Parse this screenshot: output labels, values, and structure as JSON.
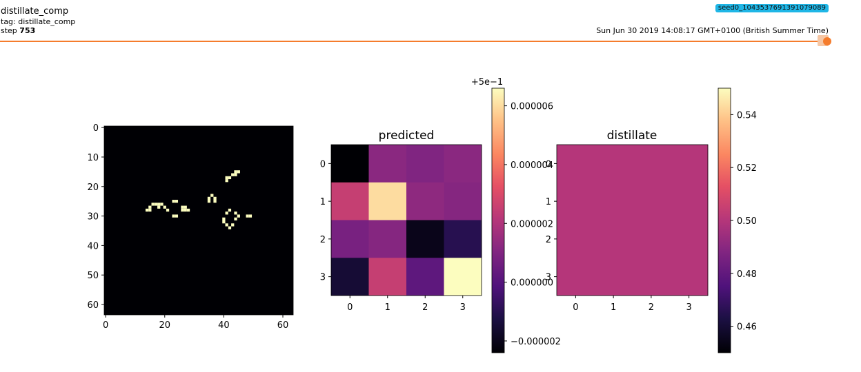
{
  "header": {
    "title": "distillate_comp",
    "tag": "tag: distillate_comp",
    "step_label": "step",
    "step_value": "753",
    "run_name": "seed0_1043537691391079089",
    "timestamp": "Sun Jun 30 2019 14:08:17 GMT+0100 (British Summer Time)"
  },
  "colors": {
    "accent": "#f57c2c",
    "badge": "#1fb6e6",
    "image_bg": "#000004",
    "image_fg": "#fcfdbf"
  },
  "chart_data": [
    {
      "type": "heatmap",
      "title": "",
      "colormap": "magma",
      "x_ticks": [
        "0",
        "20",
        "40",
        "60"
      ],
      "y_ticks": [
        "0",
        "10",
        "20",
        "30",
        "40",
        "50",
        "60"
      ],
      "grid_size": 64,
      "on_pixels": [
        [
          14,
          28
        ],
        [
          15,
          27
        ],
        [
          15,
          28
        ],
        [
          16,
          26
        ],
        [
          17,
          26
        ],
        [
          18,
          26
        ],
        [
          18,
          27
        ],
        [
          19,
          26
        ],
        [
          20,
          27
        ],
        [
          21,
          28
        ],
        [
          23,
          25
        ],
        [
          24,
          25
        ],
        [
          23,
          30
        ],
        [
          24,
          30
        ],
        [
          26,
          27
        ],
        [
          26,
          28
        ],
        [
          27,
          27
        ],
        [
          27,
          28
        ],
        [
          28,
          28
        ],
        [
          35,
          24
        ],
        [
          35,
          25
        ],
        [
          36,
          23
        ],
        [
          37,
          24
        ],
        [
          37,
          25
        ],
        [
          40,
          31
        ],
        [
          40,
          32
        ],
        [
          41,
          29
        ],
        [
          41,
          33
        ],
        [
          42,
          28
        ],
        [
          42,
          34
        ],
        [
          43,
          33
        ],
        [
          44,
          29
        ],
        [
          44,
          31
        ],
        [
          45,
          30
        ],
        [
          48,
          30
        ],
        [
          49,
          30
        ],
        [
          41,
          17
        ],
        [
          41,
          18
        ],
        [
          42,
          17
        ],
        [
          43,
          16
        ],
        [
          44,
          16
        ],
        [
          44,
          15
        ],
        [
          45,
          15
        ]
      ]
    },
    {
      "type": "heatmap",
      "title": "predicted",
      "colormap": "magma",
      "x_ticks": [
        "0",
        "1",
        "2",
        "3"
      ],
      "y_ticks": [
        "0",
        "1",
        "2",
        "3"
      ],
      "values": [
        [
          -2.4e-06,
          1.2e-06,
          1e-06,
          1.2e-06
        ],
        [
          2.5e-06,
          6e-06,
          1.3e-06,
          1.1e-06
        ],
        [
          8e-07,
          1.1e-06,
          -2e-06,
          -1e-06
        ],
        [
          -1.5e-06,
          2.5e-06,
          2e-07,
          6.6e-06
        ]
      ],
      "colorbar": {
        "offset_label": "+5e−1",
        "range": [
          -2.4e-06,
          6.6e-06
        ],
        "ticks": [
          -2e-06,
          0.0,
          2e-06,
          4e-06,
          6e-06
        ],
        "tick_labels": [
          "−0.000002",
          "0.000000",
          "0.000002",
          "0.000004",
          "0.000006"
        ]
      }
    },
    {
      "type": "heatmap",
      "title": "distillate",
      "colormap": "magma",
      "x_ticks": [
        "0",
        "1",
        "2",
        "3"
      ],
      "y_ticks": [
        "0",
        "1",
        "2",
        "3"
      ],
      "values": [
        [
          0.5,
          0.5,
          0.5,
          0.5
        ],
        [
          0.5,
          0.5,
          0.5,
          0.5
        ],
        [
          0.5,
          0.5,
          0.5,
          0.5
        ],
        [
          0.5,
          0.5,
          0.5,
          0.5
        ]
      ],
      "colorbar": {
        "range": [
          0.45,
          0.55
        ],
        "ticks": [
          0.46,
          0.48,
          0.5,
          0.52,
          0.54
        ],
        "tick_labels": [
          "0.46",
          "0.48",
          "0.50",
          "0.52",
          "0.54"
        ]
      }
    }
  ]
}
